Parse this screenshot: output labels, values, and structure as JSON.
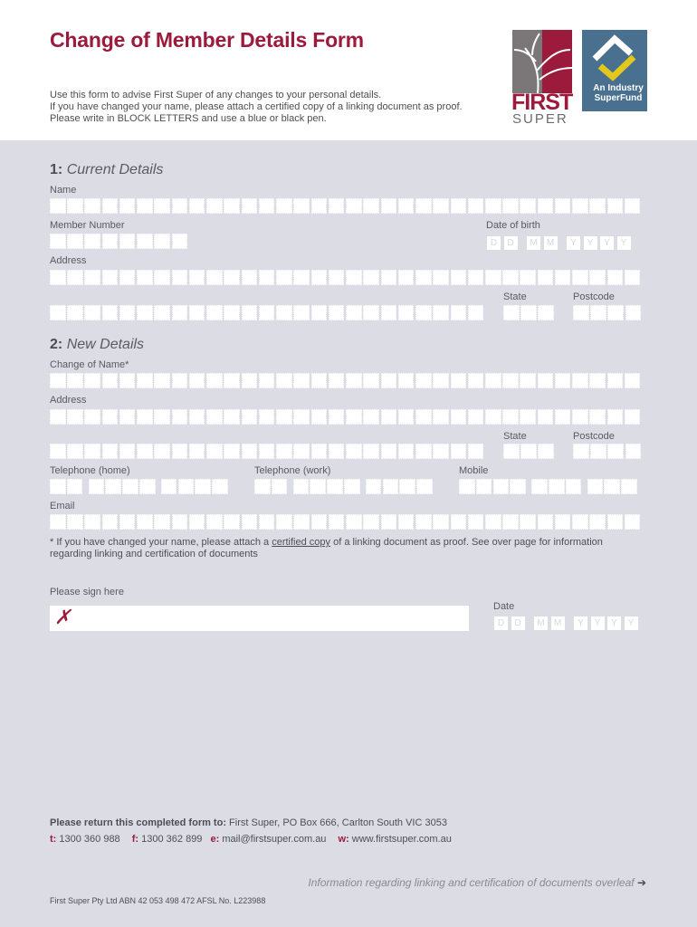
{
  "header": {
    "title": "Change of Member Details Form",
    "intro": [
      "Use this form to advise First Super of any changes to your personal details.",
      "If you have changed your name, please attach a certified copy of a linking document as proof.",
      "Please write in BLOCK LETTERS and use a blue or black pen."
    ],
    "logo_first": "FIRST",
    "logo_super": "SUPER",
    "industry_logo": "An Industry SuperFund",
    "colors": {
      "brand": "#9c1a3c",
      "industry": "#4a7090",
      "industry_accent": "#e2c81c"
    }
  },
  "section1": {
    "number": "1:",
    "title": "Current Details",
    "name_label": "Name",
    "member_label": "Member Number",
    "dob_label": "Date of birth",
    "address_label": "Address",
    "state_label": "State",
    "postcode_label": "Postcode"
  },
  "section2": {
    "number": "2:",
    "title": "New Details",
    "name_label": "Change of Name*",
    "address_label": "Address",
    "state_label": "State",
    "postcode_label": "Postcode",
    "tel_home_label": "Telephone (home)",
    "tel_work_label": "Telephone (work)",
    "mobile_label": "Mobile",
    "email_label": "Email"
  },
  "date_placeholders": [
    "D",
    "D",
    "M",
    "M",
    "Y",
    "Y",
    "Y",
    "Y"
  ],
  "note": {
    "before": "* If you have changed your name, please attach a ",
    "link": "certified copy",
    "after": " of a linking document as proof. See over page for information",
    "line2": "regarding linking and certification of documents"
  },
  "signature": {
    "label": "Please sign here",
    "mark": "✗",
    "date_label": "Date"
  },
  "footer": {
    "return_bold": "Please return this completed form to:",
    "return_address": " First Super, PO Box 666, Carlton South VIC 3053",
    "t_label": "t:",
    "t": " 1300 360 988",
    "f_label": "f:",
    "f": " 1300 362 899",
    "e_label": "e:",
    "e": " mail@firstsuper.com.au",
    "w_label": "w:",
    "w": " www.firstsuper.com.au",
    "overleaf": "Information regarding linking and certification of documents overleaf",
    "arrow": "➔",
    "legal": "First Super Pty Ltd ABN 42 053 498 472   AFSL No. L223988"
  }
}
